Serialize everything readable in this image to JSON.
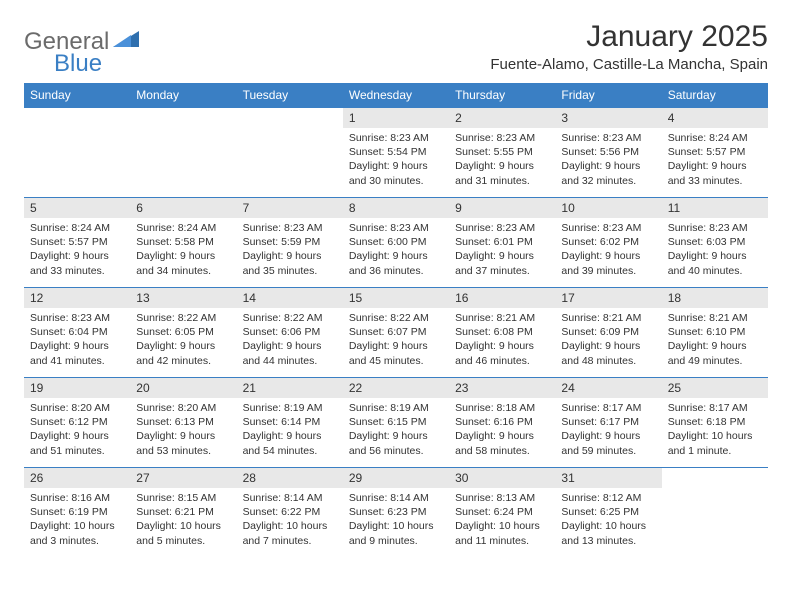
{
  "brand": {
    "general": "General",
    "blue": "Blue"
  },
  "title": "January 2025",
  "location": "Fuente-Alamo, Castille-La Mancha, Spain",
  "colors": {
    "header_bg": "#3a7fc4",
    "header_text": "#ffffff",
    "daynum_bg": "#e8e8e8",
    "border": "#3a7fc4",
    "text": "#333333",
    "logo_gray": "#6b6b6b",
    "logo_blue": "#3a7fc4",
    "background": "#ffffff"
  },
  "typography": {
    "title_fontsize": 30,
    "location_fontsize": 15,
    "header_fontsize": 12,
    "daynum_fontsize": 12,
    "cell_fontsize": 10.5
  },
  "weekdays": [
    "Sunday",
    "Monday",
    "Tuesday",
    "Wednesday",
    "Thursday",
    "Friday",
    "Saturday"
  ],
  "weeks": [
    [
      {
        "day": "",
        "lines": []
      },
      {
        "day": "",
        "lines": []
      },
      {
        "day": "",
        "lines": []
      },
      {
        "day": "1",
        "lines": [
          "Sunrise: 8:23 AM",
          "Sunset: 5:54 PM",
          "Daylight: 9 hours",
          "and 30 minutes."
        ]
      },
      {
        "day": "2",
        "lines": [
          "Sunrise: 8:23 AM",
          "Sunset: 5:55 PM",
          "Daylight: 9 hours",
          "and 31 minutes."
        ]
      },
      {
        "day": "3",
        "lines": [
          "Sunrise: 8:23 AM",
          "Sunset: 5:56 PM",
          "Daylight: 9 hours",
          "and 32 minutes."
        ]
      },
      {
        "day": "4",
        "lines": [
          "Sunrise: 8:24 AM",
          "Sunset: 5:57 PM",
          "Daylight: 9 hours",
          "and 33 minutes."
        ]
      }
    ],
    [
      {
        "day": "5",
        "lines": [
          "Sunrise: 8:24 AM",
          "Sunset: 5:57 PM",
          "Daylight: 9 hours",
          "and 33 minutes."
        ]
      },
      {
        "day": "6",
        "lines": [
          "Sunrise: 8:24 AM",
          "Sunset: 5:58 PM",
          "Daylight: 9 hours",
          "and 34 minutes."
        ]
      },
      {
        "day": "7",
        "lines": [
          "Sunrise: 8:23 AM",
          "Sunset: 5:59 PM",
          "Daylight: 9 hours",
          "and 35 minutes."
        ]
      },
      {
        "day": "8",
        "lines": [
          "Sunrise: 8:23 AM",
          "Sunset: 6:00 PM",
          "Daylight: 9 hours",
          "and 36 minutes."
        ]
      },
      {
        "day": "9",
        "lines": [
          "Sunrise: 8:23 AM",
          "Sunset: 6:01 PM",
          "Daylight: 9 hours",
          "and 37 minutes."
        ]
      },
      {
        "day": "10",
        "lines": [
          "Sunrise: 8:23 AM",
          "Sunset: 6:02 PM",
          "Daylight: 9 hours",
          "and 39 minutes."
        ]
      },
      {
        "day": "11",
        "lines": [
          "Sunrise: 8:23 AM",
          "Sunset: 6:03 PM",
          "Daylight: 9 hours",
          "and 40 minutes."
        ]
      }
    ],
    [
      {
        "day": "12",
        "lines": [
          "Sunrise: 8:23 AM",
          "Sunset: 6:04 PM",
          "Daylight: 9 hours",
          "and 41 minutes."
        ]
      },
      {
        "day": "13",
        "lines": [
          "Sunrise: 8:22 AM",
          "Sunset: 6:05 PM",
          "Daylight: 9 hours",
          "and 42 minutes."
        ]
      },
      {
        "day": "14",
        "lines": [
          "Sunrise: 8:22 AM",
          "Sunset: 6:06 PM",
          "Daylight: 9 hours",
          "and 44 minutes."
        ]
      },
      {
        "day": "15",
        "lines": [
          "Sunrise: 8:22 AM",
          "Sunset: 6:07 PM",
          "Daylight: 9 hours",
          "and 45 minutes."
        ]
      },
      {
        "day": "16",
        "lines": [
          "Sunrise: 8:21 AM",
          "Sunset: 6:08 PM",
          "Daylight: 9 hours",
          "and 46 minutes."
        ]
      },
      {
        "day": "17",
        "lines": [
          "Sunrise: 8:21 AM",
          "Sunset: 6:09 PM",
          "Daylight: 9 hours",
          "and 48 minutes."
        ]
      },
      {
        "day": "18",
        "lines": [
          "Sunrise: 8:21 AM",
          "Sunset: 6:10 PM",
          "Daylight: 9 hours",
          "and 49 minutes."
        ]
      }
    ],
    [
      {
        "day": "19",
        "lines": [
          "Sunrise: 8:20 AM",
          "Sunset: 6:12 PM",
          "Daylight: 9 hours",
          "and 51 minutes."
        ]
      },
      {
        "day": "20",
        "lines": [
          "Sunrise: 8:20 AM",
          "Sunset: 6:13 PM",
          "Daylight: 9 hours",
          "and 53 minutes."
        ]
      },
      {
        "day": "21",
        "lines": [
          "Sunrise: 8:19 AM",
          "Sunset: 6:14 PM",
          "Daylight: 9 hours",
          "and 54 minutes."
        ]
      },
      {
        "day": "22",
        "lines": [
          "Sunrise: 8:19 AM",
          "Sunset: 6:15 PM",
          "Daylight: 9 hours",
          "and 56 minutes."
        ]
      },
      {
        "day": "23",
        "lines": [
          "Sunrise: 8:18 AM",
          "Sunset: 6:16 PM",
          "Daylight: 9 hours",
          "and 58 minutes."
        ]
      },
      {
        "day": "24",
        "lines": [
          "Sunrise: 8:17 AM",
          "Sunset: 6:17 PM",
          "Daylight: 9 hours",
          "and 59 minutes."
        ]
      },
      {
        "day": "25",
        "lines": [
          "Sunrise: 8:17 AM",
          "Sunset: 6:18 PM",
          "Daylight: 10 hours",
          "and 1 minute."
        ]
      }
    ],
    [
      {
        "day": "26",
        "lines": [
          "Sunrise: 8:16 AM",
          "Sunset: 6:19 PM",
          "Daylight: 10 hours",
          "and 3 minutes."
        ]
      },
      {
        "day": "27",
        "lines": [
          "Sunrise: 8:15 AM",
          "Sunset: 6:21 PM",
          "Daylight: 10 hours",
          "and 5 minutes."
        ]
      },
      {
        "day": "28",
        "lines": [
          "Sunrise: 8:14 AM",
          "Sunset: 6:22 PM",
          "Daylight: 10 hours",
          "and 7 minutes."
        ]
      },
      {
        "day": "29",
        "lines": [
          "Sunrise: 8:14 AM",
          "Sunset: 6:23 PM",
          "Daylight: 10 hours",
          "and 9 minutes."
        ]
      },
      {
        "day": "30",
        "lines": [
          "Sunrise: 8:13 AM",
          "Sunset: 6:24 PM",
          "Daylight: 10 hours",
          "and 11 minutes."
        ]
      },
      {
        "day": "31",
        "lines": [
          "Sunrise: 8:12 AM",
          "Sunset: 6:25 PM",
          "Daylight: 10 hours",
          "and 13 minutes."
        ]
      },
      {
        "day": "",
        "lines": []
      }
    ]
  ]
}
